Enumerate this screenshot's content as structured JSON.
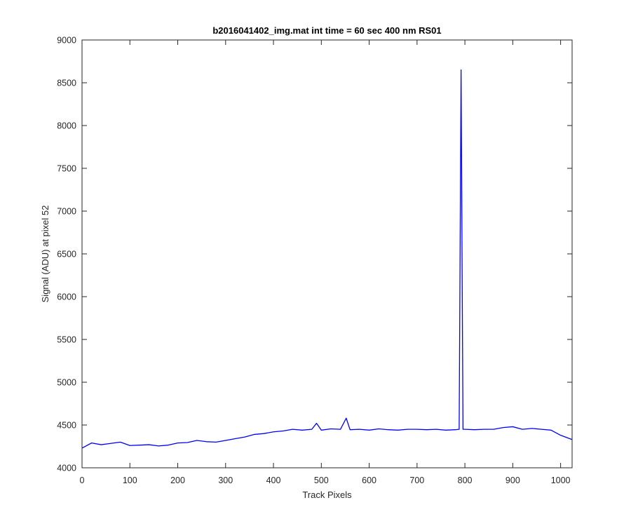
{
  "chart_data": {
    "type": "line",
    "title": "b2016041402_img.mat int time = 60 sec  400 nm RS01",
    "xlabel": "Track Pixels",
    "ylabel": "Signal (ADU) at pixel 52",
    "xlim": [
      0,
      1024
    ],
    "ylim": [
      4000,
      9000
    ],
    "xticks": [
      0,
      100,
      200,
      300,
      400,
      500,
      600,
      700,
      800,
      900,
      1000
    ],
    "yticks": [
      4000,
      4500,
      5000,
      5500,
      6000,
      6500,
      7000,
      7500,
      8000,
      8500,
      9000
    ],
    "grid": false,
    "line_color": "#0000ff",
    "series": [
      {
        "x": [
          0,
          20,
          40,
          60,
          80,
          100,
          120,
          140,
          160,
          180,
          200,
          220,
          240,
          260,
          280,
          300,
          320,
          340,
          360,
          380,
          400,
          420,
          440,
          460,
          480,
          490,
          500,
          520,
          540,
          552,
          560,
          580,
          600,
          620,
          640,
          660,
          680,
          700,
          720,
          740,
          760,
          780,
          788,
          792,
          796,
          800,
          820,
          840,
          860,
          880,
          900,
          920,
          940,
          960,
          980,
          1000,
          1024
        ],
        "y": [
          4230,
          4290,
          4270,
          4285,
          4300,
          4260,
          4265,
          4270,
          4255,
          4265,
          4290,
          4295,
          4320,
          4305,
          4300,
          4320,
          4340,
          4360,
          4390,
          4400,
          4420,
          4430,
          4450,
          4440,
          4450,
          4520,
          4440,
          4455,
          4450,
          4580,
          4445,
          4450,
          4440,
          4455,
          4445,
          4440,
          4450,
          4450,
          4445,
          4450,
          4440,
          4445,
          4450,
          8650,
          4450,
          4450,
          4445,
          4450,
          4450,
          4470,
          4480,
          4450,
          4460,
          4450,
          4440,
          4380,
          4330
        ]
      }
    ]
  }
}
